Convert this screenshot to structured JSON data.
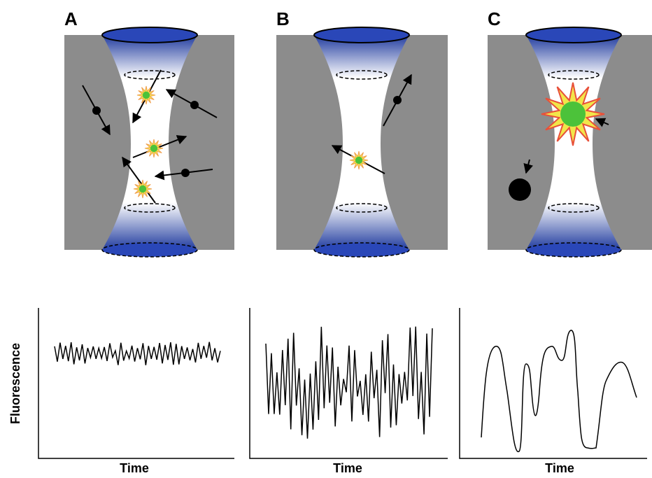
{
  "panels": [
    {
      "label": "A",
      "x_label": "Time"
    },
    {
      "label": "B",
      "x_label": "Time"
    },
    {
      "label": "C",
      "x_label": "Time"
    }
  ],
  "y_label": "Fluorescence"
}
